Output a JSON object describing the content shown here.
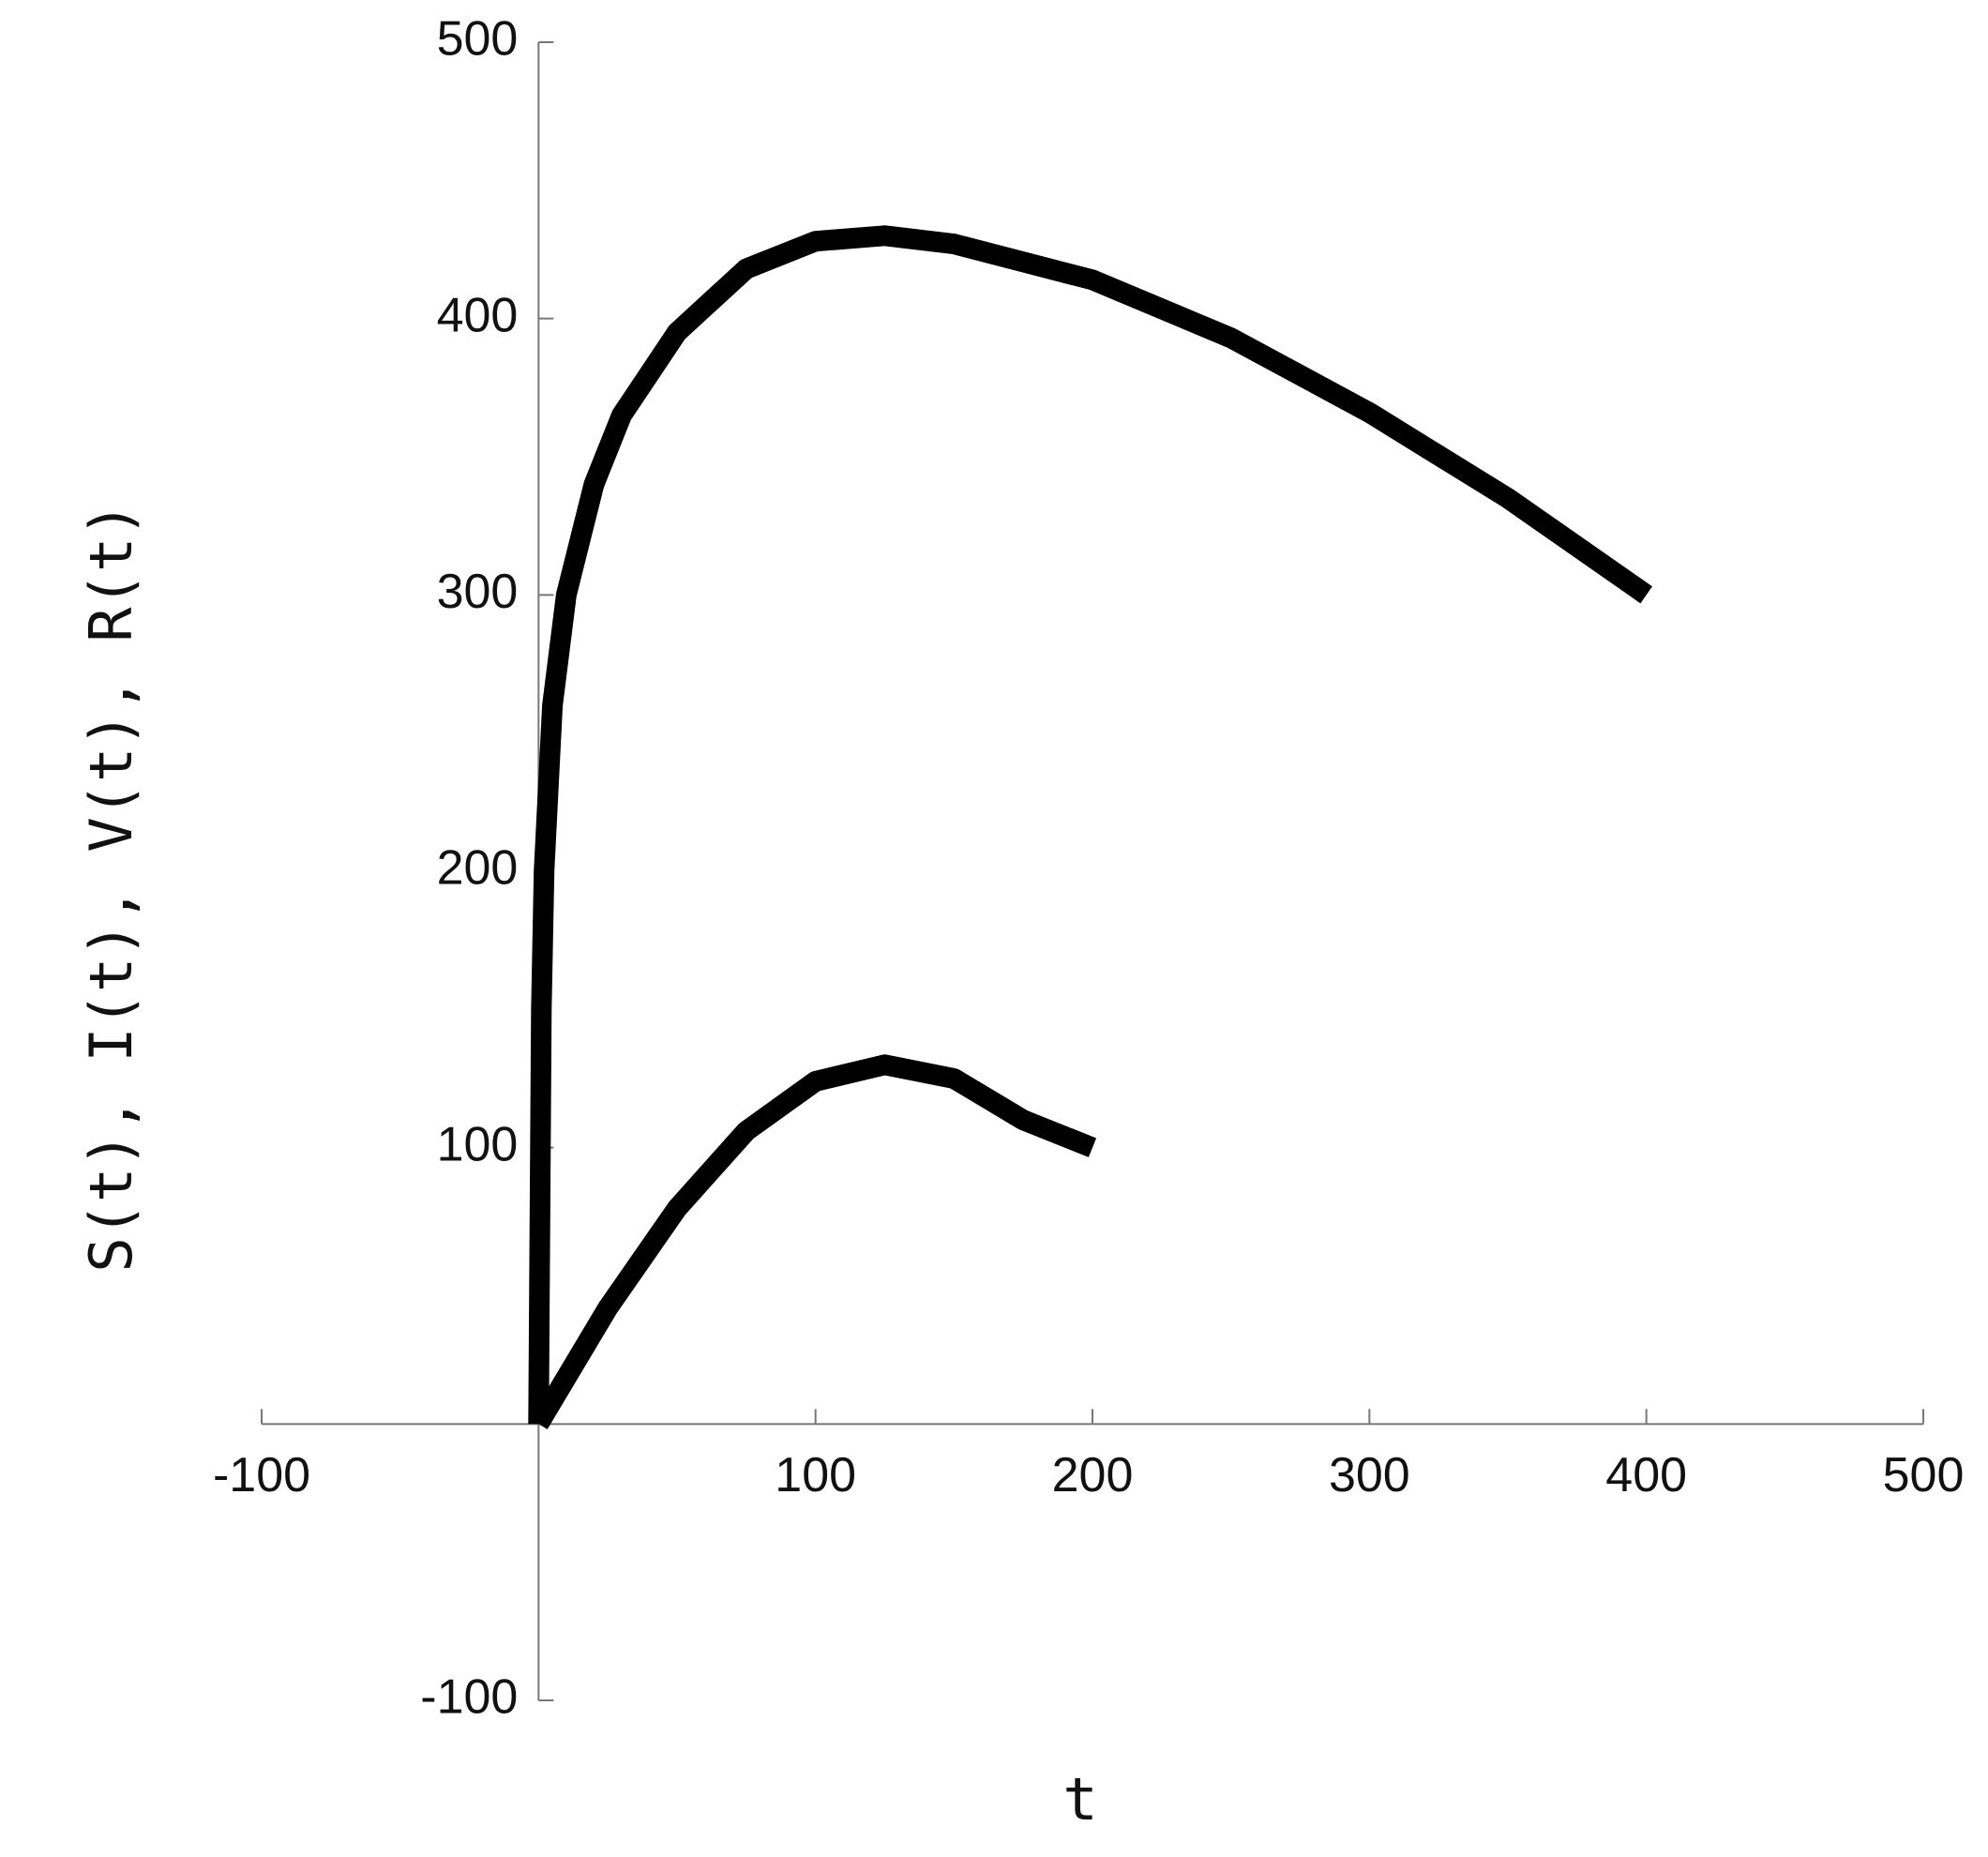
{
  "chart_data": {
    "type": "line",
    "xlabel": "t",
    "ylabel": "S(t), I(t), V(t), R(t)",
    "xlim": [
      -100,
      500
    ],
    "ylim": [
      -100,
      500
    ],
    "xticks": [
      -100,
      100,
      200,
      300,
      400,
      500
    ],
    "yticks": [
      -100,
      100,
      200,
      300,
      400,
      500
    ],
    "series": [
      {
        "color": "#000000",
        "x": [
          0,
          1,
          2,
          5,
          10,
          20,
          30,
          50,
          75,
          100,
          125,
          150,
          200,
          250,
          300,
          350,
          400
        ],
        "values": [
          0,
          150,
          200,
          260,
          300,
          340,
          365,
          395,
          418,
          428,
          430,
          427,
          414,
          393,
          366,
          335,
          300
        ]
      },
      {
        "color": "#000000",
        "x": [
          0,
          25,
          50,
          75,
          100,
          125,
          150,
          175,
          200
        ],
        "values": [
          0,
          42,
          78,
          106,
          124,
          130,
          125,
          110,
          100
        ]
      }
    ]
  }
}
